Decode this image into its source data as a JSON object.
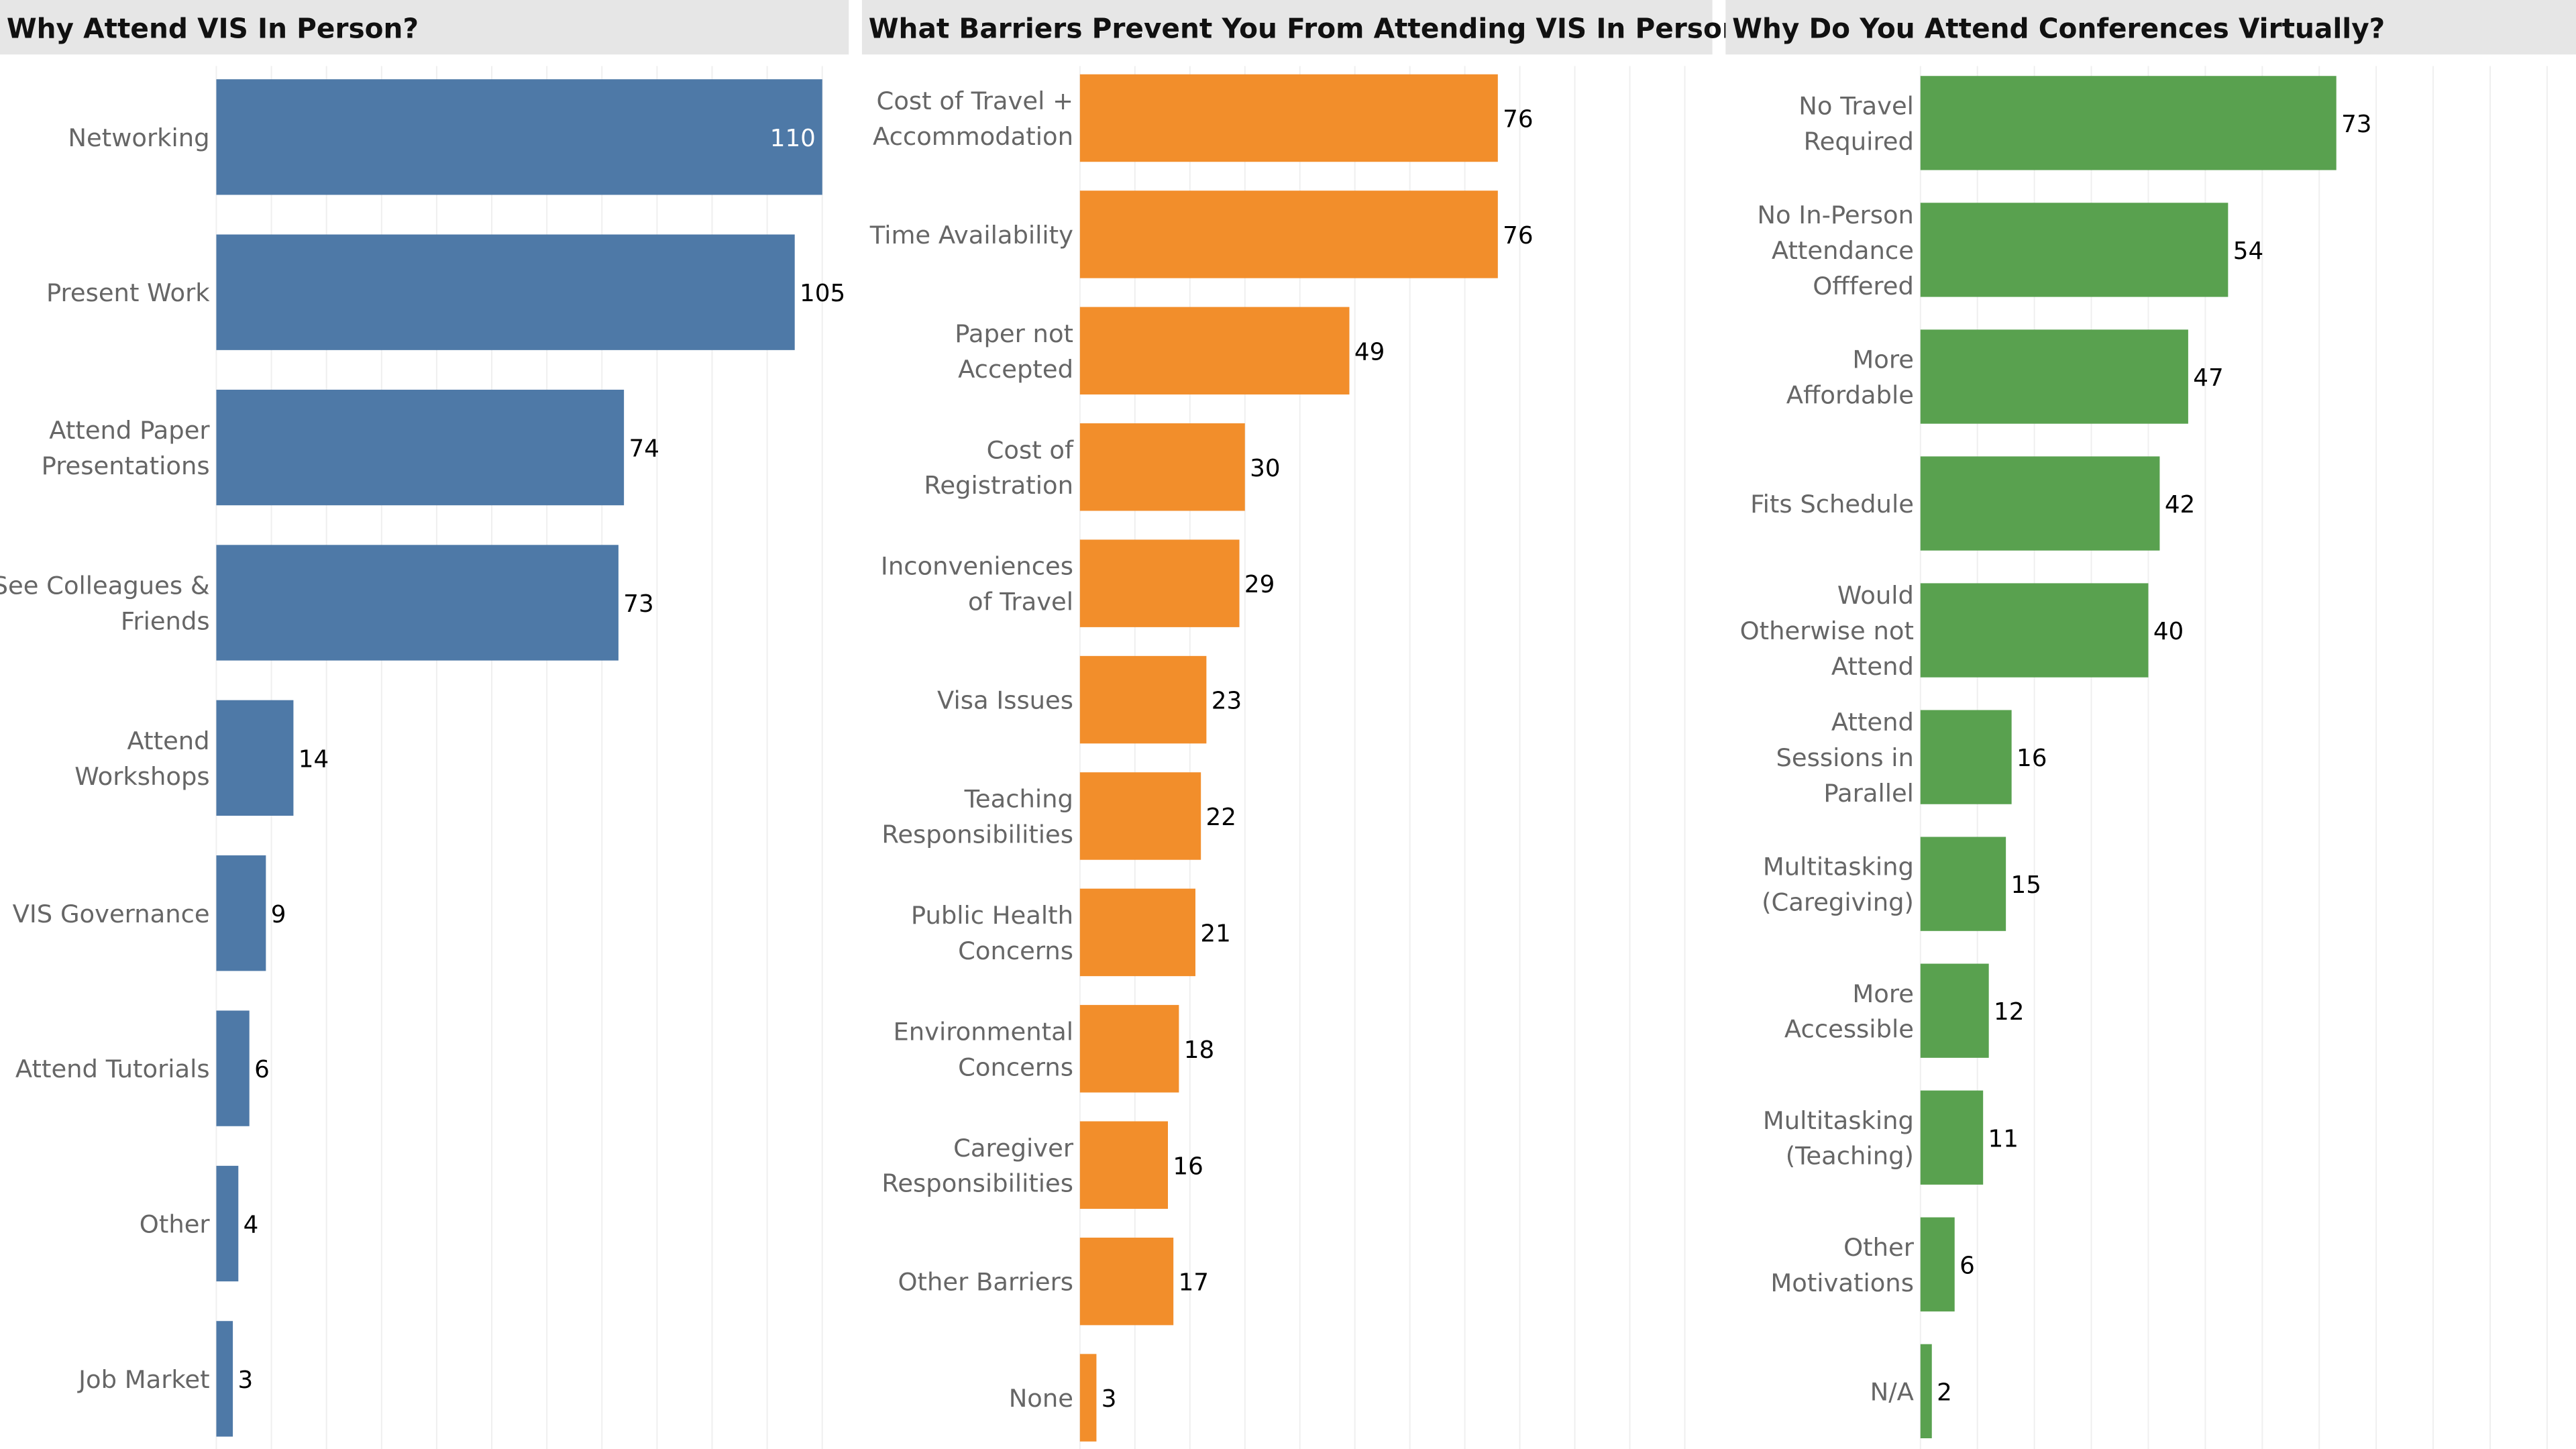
{
  "chart_data": [
    {
      "type": "bar",
      "orientation": "horizontal",
      "title": "Why Attend VIS In Person?",
      "color": "#4e79a7",
      "grid": true,
      "xlim": [
        0,
        115
      ],
      "categories": [
        [
          "Networking"
        ],
        [
          "Present Work"
        ],
        [
          "Attend Paper",
          "Presentations"
        ],
        [
          "See Colleagues &",
          "Friends"
        ],
        [
          "Attend",
          "Workshops"
        ],
        [
          "VIS Governance"
        ],
        [
          "Attend Tutorials"
        ],
        [
          "Other"
        ],
        [
          "Job Market"
        ]
      ],
      "values": [
        110,
        105,
        74,
        73,
        14,
        9,
        6,
        4,
        3
      ]
    },
    {
      "type": "bar",
      "orientation": "horizontal",
      "title": "What Barriers Prevent You From Attending VIS In Person?",
      "color": "#f28e2b",
      "grid": true,
      "xlim": [
        0,
        115
      ],
      "categories": [
        [
          "Cost of Travel +",
          "Accommodation"
        ],
        [
          "Time Availability"
        ],
        [
          "Paper not",
          "Accepted"
        ],
        [
          "Cost of",
          "Registration"
        ],
        [
          "Inconveniences",
          "of Travel"
        ],
        [
          "Visa Issues"
        ],
        [
          "Teaching",
          "Responsibilities"
        ],
        [
          "Public Health",
          "Concerns"
        ],
        [
          "Environmental",
          "Concerns"
        ],
        [
          "Caregiver",
          "Responsibilities"
        ],
        [
          "Other Barriers"
        ],
        [
          "None"
        ]
      ],
      "values": [
        76,
        76,
        49,
        30,
        29,
        23,
        22,
        21,
        18,
        16,
        17,
        3
      ]
    },
    {
      "type": "bar",
      "orientation": "horizontal",
      "title": "Why Do You Attend Conferences Virtually?",
      "color": "#59a14f",
      "grid": true,
      "xlim": [
        0,
        115
      ],
      "categories": [
        [
          "No Travel",
          "Required"
        ],
        [
          "No In-Person",
          "Attendance",
          "Offfered"
        ],
        [
          "More",
          "Affordable"
        ],
        [
          "Fits Schedule"
        ],
        [
          "Would",
          "Otherwise not",
          "Attend"
        ],
        [
          "Attend",
          "Sessions in",
          "Parallel"
        ],
        [
          "Multitasking",
          "(Caregiving)"
        ],
        [
          "More",
          "Accessible"
        ],
        [
          "Multitasking",
          "(Teaching)"
        ],
        [
          "Other",
          "Motivations"
        ],
        [
          "N/A"
        ]
      ],
      "values": [
        73,
        54,
        47,
        42,
        40,
        16,
        15,
        12,
        11,
        6,
        2
      ]
    }
  ]
}
